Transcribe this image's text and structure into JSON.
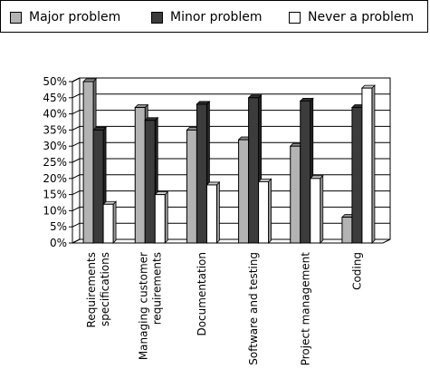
{
  "legend": {
    "items": [
      {
        "label": "Major problem",
        "color": "#b3b3b3"
      },
      {
        "label": "Minor problem",
        "color": "#3c3c3c"
      },
      {
        "label": "Never a problem",
        "color": "#ffffff"
      }
    ]
  },
  "chart_data": {
    "type": "bar",
    "categories": [
      [
        "Requirements",
        "specifications"
      ],
      [
        "Managing customer",
        "requirements"
      ],
      [
        "Documentation"
      ],
      [
        "Software and testing"
      ],
      [
        "Project management"
      ],
      [
        "Coding"
      ]
    ],
    "series": [
      {
        "name": "Major problem",
        "color": "#b3b3b3",
        "values": [
          50,
          42,
          35,
          32,
          30,
          8
        ]
      },
      {
        "name": "Minor problem",
        "color": "#3c3c3c",
        "values": [
          35,
          38,
          43,
          45,
          44,
          42
        ]
      },
      {
        "name": "Never a problem",
        "color": "#ffffff",
        "values": [
          12,
          15,
          18,
          19,
          20,
          48
        ]
      }
    ],
    "yticks": [
      "0%",
      "5%",
      "10%",
      "15%",
      "20%",
      "25%",
      "30%",
      "35%",
      "40%",
      "45%",
      "50%"
    ],
    "ylim": [
      0,
      50
    ],
    "grid": true,
    "legend_position": "top",
    "title": "",
    "xlabel": "",
    "ylabel": ""
  }
}
